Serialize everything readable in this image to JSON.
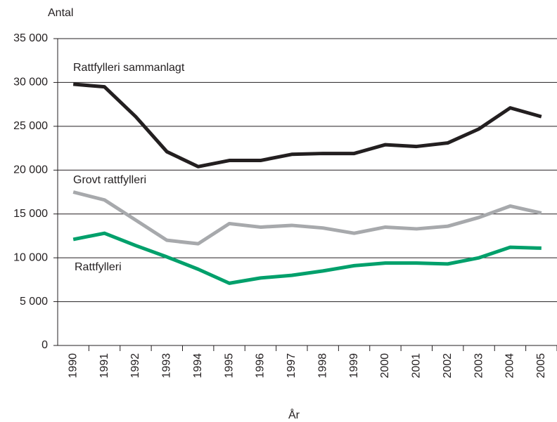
{
  "chart_data": {
    "type": "line",
    "y_label": "Antal",
    "x_label": "År",
    "categories": [
      "1990",
      "1991",
      "1992",
      "1993",
      "1994",
      "1995",
      "1996",
      "1997",
      "1998",
      "1999",
      "2000",
      "2001",
      "2002",
      "2003",
      "2004",
      "2005"
    ],
    "series": [
      {
        "name": "Rattfylleri sammanlagt",
        "color": "#231f20",
        "values": [
          29800,
          29500,
          26100,
          22100,
          20400,
          21100,
          21100,
          21800,
          21900,
          21900,
          22900,
          22700,
          23100,
          24700,
          27100,
          26100
        ]
      },
      {
        "name": "Grovt rattfylleri",
        "color": "#a7a9ac",
        "values": [
          17500,
          16600,
          14300,
          12000,
          11600,
          13900,
          13500,
          13700,
          13400,
          12800,
          13500,
          13300,
          13600,
          14600,
          15900,
          15100
        ]
      },
      {
        "name": "Rattfylleri",
        "color": "#00a06b",
        "values": [
          12100,
          12800,
          11400,
          10100,
          8700,
          7100,
          7700,
          8000,
          8500,
          9100,
          9400,
          9400,
          9300,
          10000,
          11200,
          11100
        ]
      }
    ],
    "ylim": [
      0,
      35000
    ],
    "yticks": [
      0,
      {
        "value": 5000,
        "label": "5 000"
      },
      {
        "value": 10000,
        "label": "10 000"
      },
      {
        "value": 15000,
        "label": "15 000"
      },
      {
        "value": 20000,
        "label": "20 000"
      },
      {
        "value": 25000,
        "label": "25 000"
      },
      {
        "value": 30000,
        "label": "30 000"
      },
      {
        "value": 35000,
        "label": "35 000"
      }
    ],
    "grid": true
  }
}
